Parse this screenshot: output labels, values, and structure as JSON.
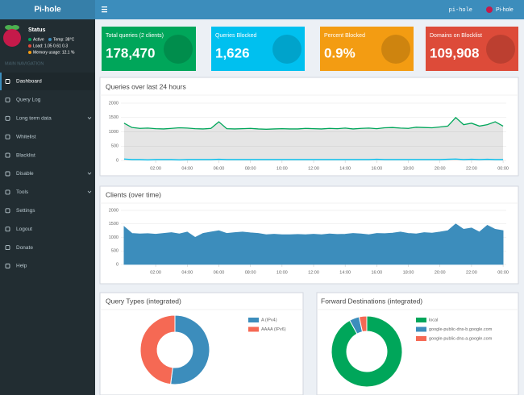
{
  "header": {
    "logo": "Pi-hole",
    "hostname": "pi-hole",
    "user": "Pi-hole"
  },
  "sidebar": {
    "status_title": "Status",
    "status": [
      "Active",
      "Temp: 38°C",
      "Load: 1.05 0.61 0.3",
      "Memory usage: 12.1 %"
    ],
    "section": "MAIN NAVIGATION",
    "menu": [
      "Dashboard",
      "Query Log",
      "Long term data",
      "Whitelist",
      "Blacklist",
      "Disable",
      "Tools",
      "Settings",
      "Logout",
      "Donate",
      "Help"
    ]
  },
  "stats": [
    {
      "label": "Total queries (2 clients)",
      "value": "178,470",
      "color": "#00a65a"
    },
    {
      "label": "Queries Blocked",
      "value": "1,626",
      "color": "#00c0ef"
    },
    {
      "label": "Percent Blocked",
      "value": "0.9%",
      "color": "#f39c12"
    },
    {
      "label": "Domains on Blocklist",
      "value": "109,908",
      "color": "#dd4b39"
    }
  ],
  "chart_data": [
    {
      "type": "line",
      "title": "Queries over last 24 hours",
      "x": [
        0,
        0.5,
        1,
        1.5,
        2,
        2.5,
        3,
        3.5,
        4,
        4.5,
        5,
        5.5,
        6,
        6.5,
        7,
        7.5,
        8,
        8.5,
        9,
        9.5,
        10,
        10.5,
        11,
        11.5,
        12,
        12.5,
        13,
        13.5,
        14,
        14.5,
        15,
        15.5,
        16,
        16.5,
        17,
        17.5,
        18,
        18.5,
        19,
        19.5,
        20,
        20.5,
        21,
        21.5,
        22,
        22.5,
        23,
        23.5,
        24
      ],
      "series": [
        {
          "color": "#00a65a",
          "fill": "rgba(0,0,0,0.1)",
          "values": [
            1300,
            1150,
            1120,
            1130,
            1110,
            1100,
            1120,
            1140,
            1130,
            1110,
            1100,
            1120,
            1350,
            1110,
            1100,
            1110,
            1120,
            1100,
            1090,
            1100,
            1110,
            1100,
            1100,
            1120,
            1110,
            1100,
            1120,
            1110,
            1130,
            1100,
            1120,
            1130,
            1110,
            1140,
            1150,
            1130,
            1120,
            1160,
            1150,
            1140,
            1170,
            1200,
            1500,
            1250,
            1300,
            1200,
            1250,
            1350,
            1200
          ]
        },
        {
          "color": "#00c0ef",
          "values": [
            50,
            30,
            30,
            20,
            30,
            30,
            30,
            20,
            30,
            30,
            30,
            30,
            40,
            30,
            30,
            30,
            30,
            30,
            30,
            30,
            30,
            30,
            30,
            30,
            30,
            30,
            30,
            30,
            30,
            30,
            30,
            30,
            40,
            30,
            30,
            30,
            30,
            30,
            30,
            30,
            30,
            40,
            50,
            30,
            40,
            30,
            40,
            30,
            30
          ]
        }
      ],
      "xlim": [
        -0.2,
        24.2
      ],
      "xticks": [
        {
          "value": 2,
          "label": "02:00"
        },
        {
          "value": 4,
          "label": "04:00"
        },
        {
          "value": 6,
          "label": "06:00"
        },
        {
          "value": 8,
          "label": "08:00"
        },
        {
          "value": 10,
          "label": "10:00"
        },
        {
          "value": 12,
          "label": "12:00"
        },
        {
          "value": 14,
          "label": "14:00"
        },
        {
          "value": 16,
          "label": "16:00"
        },
        {
          "value": 18,
          "label": "18:00"
        },
        {
          "value": 20,
          "label": "20:00"
        },
        {
          "value": 22,
          "label": "22:00"
        },
        {
          "value": 24,
          "label": "00:00"
        }
      ],
      "ylim": [
        0,
        2000
      ],
      "yticks": [
        0,
        500,
        1000,
        1500,
        2000
      ],
      "grid": true
    },
    {
      "type": "area",
      "title": "Clients (over time)",
      "x": [
        0,
        0.5,
        1,
        1.5,
        2,
        2.5,
        3,
        3.5,
        4,
        4.5,
        5,
        5.5,
        6,
        6.5,
        7,
        7.5,
        8,
        8.5,
        9,
        9.5,
        10,
        10.5,
        11,
        11.5,
        12,
        12.5,
        13,
        13.5,
        14,
        14.5,
        15,
        15.5,
        16,
        16.5,
        17,
        17.5,
        18,
        18.5,
        19,
        19.5,
        20,
        20.5,
        21,
        21.5,
        22,
        22.5,
        23,
        23.5,
        24
      ],
      "series": [
        {
          "color": "#3c8dbc",
          "values": [
            1400,
            1150,
            1130,
            1140,
            1120,
            1150,
            1180,
            1130,
            1200,
            1000,
            1150,
            1200,
            1250,
            1150,
            1180,
            1200,
            1170,
            1150,
            1100,
            1120,
            1100,
            1100,
            1110,
            1100,
            1120,
            1100,
            1130,
            1110,
            1120,
            1150,
            1130,
            1100,
            1150,
            1140,
            1160,
            1200,
            1150,
            1130,
            1180,
            1160,
            1200,
            1250,
            1500,
            1300,
            1350,
            1200,
            1450,
            1300,
            1250
          ]
        }
      ],
      "xlim": [
        -0.2,
        24.2
      ],
      "xticks": [
        {
          "value": 2,
          "label": "02:00"
        },
        {
          "value": 4,
          "label": "04:00"
        },
        {
          "value": 6,
          "label": "06:00"
        },
        {
          "value": 8,
          "label": "08:00"
        },
        {
          "value": 10,
          "label": "10:00"
        },
        {
          "value": 12,
          "label": "12:00"
        },
        {
          "value": 14,
          "label": "14:00"
        },
        {
          "value": 16,
          "label": "16:00"
        },
        {
          "value": 18,
          "label": "18:00"
        },
        {
          "value": 20,
          "label": "20:00"
        },
        {
          "value": 22,
          "label": "22:00"
        },
        {
          "value": 24,
          "label": "00:00"
        }
      ],
      "ylim": [
        0,
        2000
      ],
      "yticks": [
        0,
        500,
        1000,
        1500,
        2000
      ],
      "grid": true
    },
    {
      "type": "doughnut",
      "title": "Query Types (integrated)",
      "categories": [
        "A (IPv4)",
        "AAAA (IPv6)"
      ],
      "values": [
        52,
        48
      ],
      "colors": [
        "#3c8dbc",
        "#f56954"
      ]
    },
    {
      "type": "doughnut",
      "title": "Forward Destinations (integrated)",
      "categories": [
        "local",
        "google-public-dns-b.google.com",
        "google-public-dns-a.google.com"
      ],
      "values": [
        92,
        4.5,
        3.5
      ],
      "colors": [
        "#00a65a",
        "#3c8dbc",
        "#f56954"
      ]
    }
  ]
}
